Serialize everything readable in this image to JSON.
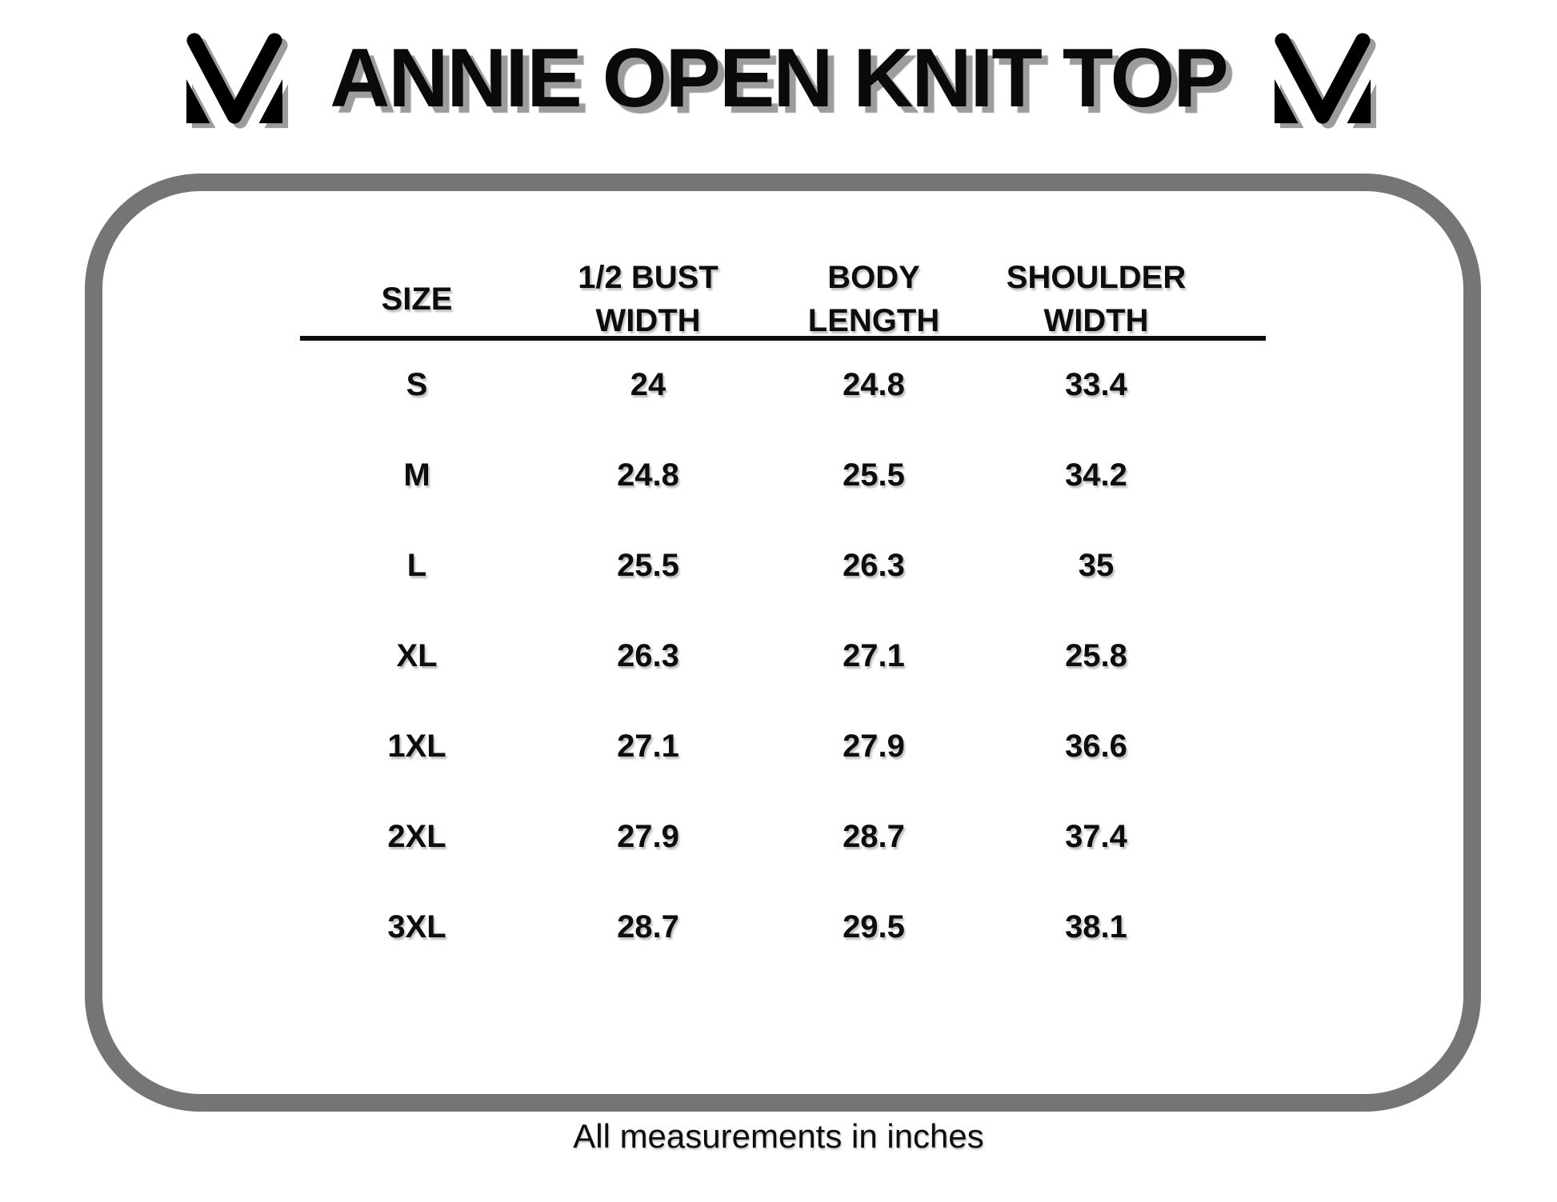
{
  "title": "ANNIE OPEN KNIT TOP",
  "footer": "All measurements in inches",
  "colors": {
    "border_gray": "#757575",
    "text_black": "#0d0d0d",
    "title_shadow_gray": "#9c9c9c"
  },
  "logo": {
    "name": "stylized-m-monogram",
    "color": "#000000"
  },
  "table": {
    "headers": [
      {
        "l1": "SIZE",
        "l2": ""
      },
      {
        "l1": "1/2 BUST",
        "l2": "WIDTH"
      },
      {
        "l1": "BODY",
        "l2": "LENGTH"
      },
      {
        "l1": "SHOULDER",
        "l2": "WIDTH"
      }
    ],
    "rows": [
      [
        "S",
        "24",
        "24.8",
        "33.4"
      ],
      [
        "M",
        "24.8",
        "25.5",
        "34.2"
      ],
      [
        "L",
        "25.5",
        "26.3",
        "35"
      ],
      [
        "XL",
        "26.3",
        "27.1",
        "25.8"
      ],
      [
        "1XL",
        "27.1",
        "27.9",
        "36.6"
      ],
      [
        "2XL",
        "27.9",
        "28.7",
        "37.4"
      ],
      [
        "3XL",
        "28.7",
        "29.5",
        "38.1"
      ]
    ],
    "units_note": "inches"
  }
}
